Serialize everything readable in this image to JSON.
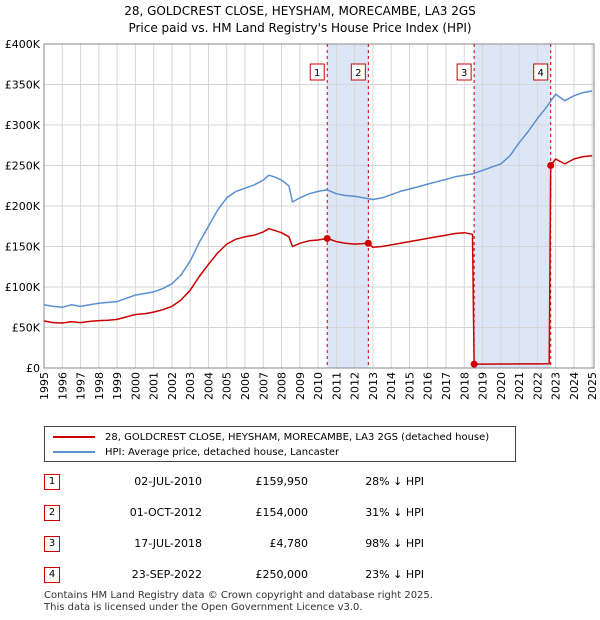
{
  "header": {
    "title_line1": "28, GOLDCREST CLOSE, HEYSHAM, MORECAMBE, LA3 2GS",
    "title_line2": "Price paid vs. HM Land Registry's House Price Index (HPI)"
  },
  "chart_data": {
    "type": "line",
    "title": "28, GOLDCREST CLOSE, HEYSHAM, MORECAMBE, LA3 2GS — Price paid vs. HM Land Registry's House Price Index (HPI)",
    "xlim": [
      1995,
      2025.1
    ],
    "ylim": [
      0,
      400000
    ],
    "y_ticks": [
      {
        "value": 0,
        "label": "£0"
      },
      {
        "value": 50000,
        "label": "£50K"
      },
      {
        "value": 100000,
        "label": "£100K"
      },
      {
        "value": 150000,
        "label": "£150K"
      },
      {
        "value": 200000,
        "label": "£200K"
      },
      {
        "value": 250000,
        "label": "£250K"
      },
      {
        "value": 300000,
        "label": "£300K"
      },
      {
        "value": 350000,
        "label": "£350K"
      },
      {
        "value": 400000,
        "label": "£400K"
      }
    ],
    "x_ticks": [
      "1995",
      "1996",
      "1997",
      "1998",
      "1999",
      "2000",
      "2001",
      "2002",
      "2003",
      "2004",
      "2005",
      "2006",
      "2007",
      "2008",
      "2009",
      "2010",
      "2011",
      "2012",
      "2013",
      "2014",
      "2015",
      "2016",
      "2017",
      "2018",
      "2019",
      "2020",
      "2021",
      "2022",
      "2023",
      "2024",
      "2025"
    ],
    "series": [
      {
        "name": "HPI: Average price, detached house, Lancaster",
        "color": "#5b8fd0",
        "points": [
          [
            1995.0,
            78000
          ],
          [
            1995.5,
            76000
          ],
          [
            1996.0,
            75000
          ],
          [
            1996.5,
            78000
          ],
          [
            1997.0,
            76000
          ],
          [
            1997.5,
            78000
          ],
          [
            1998.0,
            80000
          ],
          [
            1998.5,
            81000
          ],
          [
            1999.0,
            82000
          ],
          [
            1999.5,
            86000
          ],
          [
            2000.0,
            90000
          ],
          [
            2000.5,
            92000
          ],
          [
            2001.0,
            94000
          ],
          [
            2001.5,
            98000
          ],
          [
            2002.0,
            104000
          ],
          [
            2002.5,
            115000
          ],
          [
            2003.0,
            132000
          ],
          [
            2003.5,
            155000
          ],
          [
            2004.0,
            175000
          ],
          [
            2004.5,
            195000
          ],
          [
            2005.0,
            210000
          ],
          [
            2005.5,
            218000
          ],
          [
            2006.0,
            222000
          ],
          [
            2006.5,
            226000
          ],
          [
            2007.0,
            232000
          ],
          [
            2007.3,
            238000
          ],
          [
            2007.6,
            236000
          ],
          [
            2008.0,
            232000
          ],
          [
            2008.4,
            225000
          ],
          [
            2008.6,
            205000
          ],
          [
            2009.0,
            210000
          ],
          [
            2009.5,
            215000
          ],
          [
            2010.0,
            218000
          ],
          [
            2010.5,
            220000
          ],
          [
            2011.0,
            215000
          ],
          [
            2011.5,
            213000
          ],
          [
            2012.0,
            212000
          ],
          [
            2012.5,
            210000
          ],
          [
            2013.0,
            208000
          ],
          [
            2013.5,
            210000
          ],
          [
            2014.0,
            214000
          ],
          [
            2014.5,
            218000
          ],
          [
            2015.0,
            221000
          ],
          [
            2015.5,
            224000
          ],
          [
            2016.0,
            227000
          ],
          [
            2016.5,
            230000
          ],
          [
            2017.0,
            233000
          ],
          [
            2017.5,
            236000
          ],
          [
            2018.0,
            238000
          ],
          [
            2018.5,
            240000
          ],
          [
            2019.0,
            244000
          ],
          [
            2019.5,
            248000
          ],
          [
            2020.0,
            252000
          ],
          [
            2020.5,
            262000
          ],
          [
            2021.0,
            278000
          ],
          [
            2021.5,
            292000
          ],
          [
            2022.0,
            308000
          ],
          [
            2022.5,
            322000
          ],
          [
            2023.0,
            338000
          ],
          [
            2023.5,
            330000
          ],
          [
            2024.0,
            336000
          ],
          [
            2024.5,
            340000
          ],
          [
            2025.0,
            342000
          ]
        ]
      },
      {
        "name": "28, GOLDCREST CLOSE, HEYSHAM, MORECAMBE, LA3 2GS (detached house)",
        "color": "#cc0000",
        "points": [
          [
            1995.0,
            58000
          ],
          [
            1995.5,
            56000
          ],
          [
            1996.0,
            55500
          ],
          [
            1996.5,
            57000
          ],
          [
            1997.0,
            56000
          ],
          [
            1997.5,
            57500
          ],
          [
            1998.0,
            58500
          ],
          [
            1998.5,
            59000
          ],
          [
            1999.0,
            60000
          ],
          [
            1999.5,
            63000
          ],
          [
            2000.0,
            66000
          ],
          [
            2000.5,
            67000
          ],
          [
            2001.0,
            69000
          ],
          [
            2001.5,
            72000
          ],
          [
            2002.0,
            76000
          ],
          [
            2002.5,
            84000
          ],
          [
            2003.0,
            96000
          ],
          [
            2003.5,
            113000
          ],
          [
            2004.0,
            128000
          ],
          [
            2004.5,
            142000
          ],
          [
            2005.0,
            153000
          ],
          [
            2005.5,
            159000
          ],
          [
            2006.0,
            162000
          ],
          [
            2006.5,
            164000
          ],
          [
            2007.0,
            168000
          ],
          [
            2007.3,
            172000
          ],
          [
            2007.6,
            170000
          ],
          [
            2008.0,
            167000
          ],
          [
            2008.4,
            162000
          ],
          [
            2008.6,
            150000
          ],
          [
            2009.0,
            154000
          ],
          [
            2009.5,
            157000
          ],
          [
            2010.0,
            158000
          ],
          [
            2010.5,
            159950
          ],
          [
            2011.0,
            156000
          ],
          [
            2011.5,
            154000
          ],
          [
            2012.0,
            153000
          ],
          [
            2012.75,
            154000
          ],
          [
            2013.0,
            149000
          ],
          [
            2013.5,
            150000
          ],
          [
            2014.0,
            152000
          ],
          [
            2014.5,
            154000
          ],
          [
            2015.0,
            156000
          ],
          [
            2015.5,
            158000
          ],
          [
            2016.0,
            160000
          ],
          [
            2016.5,
            162000
          ],
          [
            2017.0,
            164000
          ],
          [
            2017.5,
            166000
          ],
          [
            2018.0,
            167000
          ],
          [
            2018.45,
            165000
          ],
          [
            2018.54,
            4780
          ],
          [
            2019.0,
            4800
          ],
          [
            2020.0,
            4900
          ],
          [
            2021.0,
            5000
          ],
          [
            2022.0,
            5100
          ],
          [
            2022.65,
            5200
          ],
          [
            2022.73,
            250000
          ],
          [
            2023.0,
            258000
          ],
          [
            2023.5,
            252000
          ],
          [
            2024.0,
            258000
          ],
          [
            2024.5,
            261000
          ],
          [
            2025.0,
            262000
          ]
        ]
      }
    ],
    "sales": [
      {
        "num": "1",
        "x": 2010.5,
        "price": 159950
      },
      {
        "num": "2",
        "x": 2012.75,
        "price": 154000
      },
      {
        "num": "3",
        "x": 2018.54,
        "price": 4780
      },
      {
        "num": "4",
        "x": 2022.73,
        "price": 250000
      }
    ],
    "shaded_ranges": [
      [
        2010.5,
        2012.75
      ],
      [
        2018.54,
        2022.73
      ]
    ]
  },
  "legend": {
    "property": "28, GOLDCREST CLOSE, HEYSHAM, MORECAMBE, LA3 2GS (detached house)",
    "hpi": "HPI: Average price, detached house, Lancaster"
  },
  "sales_table": [
    {
      "num": "1",
      "date": "02-JUL-2010",
      "price": "£159,950",
      "delta": "28% ↓ HPI"
    },
    {
      "num": "2",
      "date": "01-OCT-2012",
      "price": "£154,000",
      "delta": "31% ↓ HPI"
    },
    {
      "num": "3",
      "date": "17-JUL-2018",
      "price": "£4,780",
      "delta": "98% ↓ HPI"
    },
    {
      "num": "4",
      "date": "23-SEP-2022",
      "price": "£250,000",
      "delta": "23% ↓ HPI"
    }
  ],
  "footer": {
    "line1": "Contains HM Land Registry data © Crown copyright and database right 2025.",
    "line2": "This data is licensed under the Open Government Licence v3.0."
  },
  "colors": {
    "property": "#cc0000",
    "hpi": "#5b8fd0",
    "shade": "#dde6f7"
  }
}
